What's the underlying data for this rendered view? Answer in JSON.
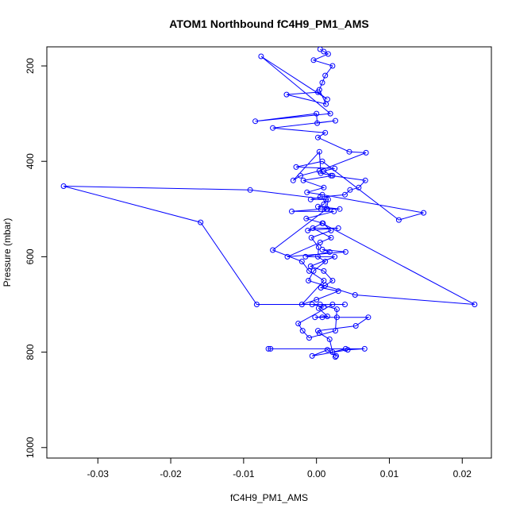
{
  "chart_data": {
    "type": "line",
    "title": "ATOM1 Northbound fC4H9_PM1_AMS",
    "xlabel": "fC4H9_PM1_AMS",
    "ylabel": "Pressure (mbar)",
    "xlim": [
      -0.037,
      0.024
    ],
    "ylim": [
      1022,
      160
    ],
    "y_reversed": true,
    "grid": false,
    "xticks": [
      -0.03,
      -0.02,
      -0.01,
      0.0,
      0.01,
      0.02
    ],
    "xtick_labels": [
      "-0.03",
      "-0.02",
      "-0.01",
      "0.00",
      "0.01",
      "0.02"
    ],
    "yticks": [
      200,
      400,
      600,
      800,
      1000
    ],
    "ytick_labels": [
      "200",
      "400",
      "600",
      "800",
      "1000"
    ],
    "series": [
      {
        "color": "#0000ff",
        "x": [
          0.0026,
          0.0027,
          0.0015,
          -0.0006,
          0.0043,
          0.0066,
          -0.0066,
          -0.0063,
          0.004,
          0.0022,
          0.0018,
          0.0004,
          0.0002,
          0.0054,
          0.0071,
          0.0028,
          0.0008,
          -0.0002,
          0.0015,
          0.0003,
          0.001,
          -0.0006,
          0.0022,
          -0.0025,
          -0.0019,
          -0.001,
          0.0026,
          0.0028,
          0.0005,
          0.0039,
          -0.0082,
          -0.0159,
          -0.0347,
          -0.0091,
          0.0016,
          0.0014,
          -0.006,
          -0.002,
          -0.001,
          0.001,
          -0.002,
          0.0,
          0.003,
          0.0006,
          0.0012,
          0.0022,
          0.001,
          -0.0008,
          0.0025,
          -0.0015,
          0.0018,
          0.0008,
          0.004,
          -0.004,
          0.0005,
          0.002,
          -0.0005,
          0.003,
          -0.0012,
          0.0008,
          0.0217,
          0.0053,
          -0.0011,
          -0.0004,
          0.0012,
          0.0002,
          0.0003,
          -0.0007,
          0.002,
          0.0009,
          -0.0014,
          0.0024,
          -0.0034,
          0.0006,
          0.0015,
          0.0032,
          0.0002,
          0.001,
          0.0013,
          -0.0008,
          0.0005,
          0.0039,
          0.0046,
          0.0058,
          0.0067,
          0.002,
          0.001,
          0.0025,
          -0.0028,
          0.0008,
          0.0113,
          0.0147,
          0.0008,
          -0.0013,
          0.001,
          -0.0018,
          0.0022,
          0.0006,
          0.0004,
          -0.0032,
          -0.0022,
          0.0004,
          0.0068,
          0.0045,
          0.0002,
          0.0012,
          -0.006,
          0.0026,
          0.0001,
          0.0,
          -0.0084,
          0.0019,
          -0.0076,
          0.0015,
          0.0002,
          -0.0041,
          0.0013,
          0.0004,
          0.0008,
          0.0012,
          0.0022,
          -0.0004,
          0.0016,
          0.001,
          0.0005
        ],
        "y": [
          810,
          808,
          795,
          808,
          795,
          793,
          793,
          793,
          793,
          800,
          773,
          760,
          755,
          745,
          727,
          727,
          727,
          727,
          725,
          708,
          705,
          700,
          700,
          740,
          755,
          770,
          755,
          710,
          700,
          700,
          700,
          528,
          452,
          460,
          480,
          500,
          586,
          610,
          630,
          650,
          700,
          690,
          672,
          665,
          660,
          650,
          630,
          620,
          600,
          600,
          590,
          585,
          590,
          600,
          570,
          560,
          540,
          540,
          545,
          530,
          700,
          680,
          650,
          630,
          610,
          600,
          580,
          560,
          545,
          530,
          520,
          505,
          505,
          500,
          500,
          500,
          495,
          490,
          480,
          480,
          475,
          470,
          460,
          455,
          440,
          430,
          420,
          415,
          412,
          400,
          523,
          508,
          470,
          465,
          455,
          440,
          430,
          425,
          380,
          440,
          430,
          420,
          382,
          380,
          350,
          340,
          330,
          315,
          320,
          300,
          316,
          300,
          180,
          270,
          255,
          260,
          280,
          250,
          235,
          220,
          200,
          188,
          175,
          170,
          165
        ]
      }
    ]
  }
}
